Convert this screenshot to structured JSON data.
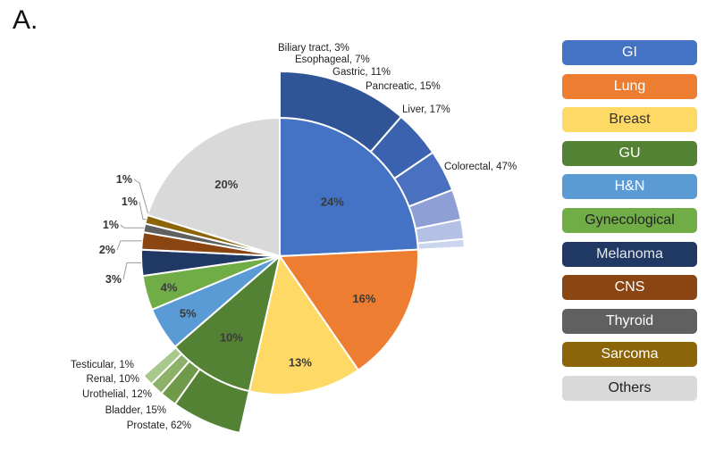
{
  "panel_label": "A.",
  "chart_data": {
    "type": "pie",
    "title": "",
    "slices": [
      {
        "label": "GI",
        "value": 24,
        "display": "24%",
        "color": "#4472C4"
      },
      {
        "label": "Lung",
        "value": 16,
        "display": "16%",
        "color": "#ED7D31"
      },
      {
        "label": "Breast",
        "value": 13,
        "display": "13%",
        "color": "#FFD966"
      },
      {
        "label": "GU",
        "value": 10,
        "display": "10%",
        "color": "#548235"
      },
      {
        "label": "H&N",
        "value": 5,
        "display": "5%",
        "color": "#5B9BD5"
      },
      {
        "label": "Gynecological",
        "value": 4,
        "display": "4%",
        "color": "#70AD47"
      },
      {
        "label": "Melanoma",
        "value": 3,
        "display": "3%",
        "color": "#1F3864"
      },
      {
        "label": "CNS",
        "value": 2,
        "display": "2%",
        "color": "#8B4513"
      },
      {
        "label": "Thyroid",
        "value": 1,
        "display": "1%",
        "color": "#606060"
      },
      {
        "label": "Sarcoma",
        "value": 1,
        "display": "1%",
        "color": "#8B6508"
      },
      {
        "label": "Others",
        "value": 20,
        "display": "20%",
        "color": "#D9D9D9"
      }
    ],
    "extra_labels": [
      {
        "display": "1%",
        "color": "#2F5597"
      }
    ],
    "gi_breakdown": [
      {
        "label": "Colorectal, 47%",
        "value": 47,
        "color": "#2F5597"
      },
      {
        "label": "Liver, 17%",
        "value": 17,
        "color": "#3A62AE"
      },
      {
        "label": "Pancreatic, 15%",
        "value": 15,
        "color": "#4A70C0"
      },
      {
        "label": "Gastric, 11%",
        "value": 11,
        "color": "#8E9FD6"
      },
      {
        "label": "Esophageal, 7%",
        "value": 7,
        "color": "#B4C0E4"
      },
      {
        "label": "Biliary tract, 3%",
        "value": 3,
        "color": "#CCD5EE"
      }
    ],
    "gu_breakdown": [
      {
        "label": "Prostate, 62%",
        "value": 62,
        "color": "#548235"
      },
      {
        "label": "Bladder, 15%",
        "value": 15,
        "color": "#6E9A4A"
      },
      {
        "label": "Urothelial, 12%",
        "value": 12,
        "color": "#8DB169"
      },
      {
        "label": "Renal, 10%",
        "value": 10,
        "color": "#A9C88C"
      },
      {
        "label": "Testicular, 1%",
        "value": 1,
        "color": "#C5DBAF"
      }
    ],
    "legend_placement": "right"
  },
  "legend": [
    {
      "label": "GI",
      "bg": "#4472C4",
      "fg": "#ffffff"
    },
    {
      "label": "Lung",
      "bg": "#ED7D31",
      "fg": "#ffffff"
    },
    {
      "label": "Breast",
      "bg": "#FFD966",
      "fg": "#333333"
    },
    {
      "label": "GU",
      "bg": "#548235",
      "fg": "#ffffff"
    },
    {
      "label": "H&N",
      "bg": "#5B9BD5",
      "fg": "#ffffff"
    },
    {
      "label": "Gynecological",
      "bg": "#70AD47",
      "fg": "#222222"
    },
    {
      "label": "Melanoma",
      "bg": "#1F3864",
      "fg": "#e8e8e8"
    },
    {
      "label": "CNS",
      "bg": "#8B4513",
      "fg": "#ffffff"
    },
    {
      "label": "Thyroid",
      "bg": "#606060",
      "fg": "#ffffff"
    },
    {
      "label": "Sarcoma",
      "bg": "#8B6508",
      "fg": "#ffffff"
    },
    {
      "label": "Others",
      "bg": "#D9D9D9",
      "fg": "#222222"
    }
  ]
}
